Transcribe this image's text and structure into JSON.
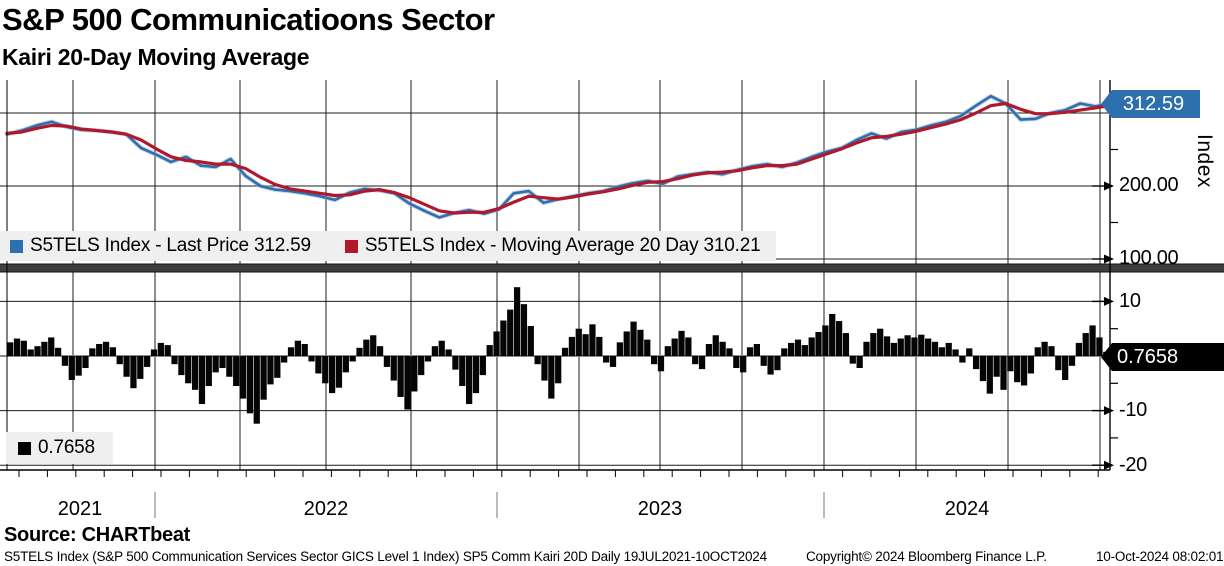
{
  "header": {
    "title": "S&P 500 Communicatioons Sector",
    "subtitle": "Kairi 20-Day Moving Average"
  },
  "colors": {
    "price_line": "#2e6fae",
    "price_halo": "#9db8d8",
    "ma_line": "#b2182b",
    "bars": "#050505",
    "legend_bg": "#efefef",
    "grid": "#1c1c1c",
    "zero_line": "#8a8a8a",
    "panel_separator": "#3f3f3f",
    "price_tag_bg": "#2e6fae",
    "kairi_tag_bg": "#000000"
  },
  "top_panel": {
    "legend": [
      {
        "swatch_color": "#2e6fae",
        "label": "S5TELS Index - Last Price 312.59"
      },
      {
        "swatch_color": "#b2182b",
        "label": "S5TELS Index - Moving Average 20 Day 310.21"
      }
    ],
    "axis": {
      "unit_label": "Index",
      "ticks": [
        "200.00",
        "100.00"
      ],
      "price_tag": "312.59"
    }
  },
  "bottom_panel": {
    "legend": [
      {
        "swatch_color": "#000000",
        "label": "0.7658"
      }
    ],
    "axis": {
      "ticks": [
        "10",
        "-10",
        "-20"
      ],
      "value_tag": "0.7658"
    }
  },
  "x_axis": {
    "years": [
      "2021",
      "2022",
      "2023",
      "2024"
    ]
  },
  "footer": {
    "source": "Source:  CHARTbeat",
    "disclaimer": "S5TELS Index (S&P 500 Communication Services Sector GICS Level 1 Index) SP5 Comm Kairi 20D  Daily 19JUL2021-10OCT2024",
    "copyright": "Copyright© 2024 Bloomberg Finance L.P.",
    "timestamp": "10-Oct-2024 08:02:01"
  },
  "chart_data": [
    {
      "type": "line",
      "title": "S5TELS Index - Last Price vs Moving Average 20 Day",
      "x_range": [
        "19JUL2021",
        "10OCT2024"
      ],
      "x_year_labels": [
        "2021",
        "2022",
        "2023",
        "2024"
      ],
      "ylabel": "Index",
      "ylim": [
        93,
        345
      ],
      "gridlines_y": [
        300,
        200,
        100
      ],
      "grid": true,
      "legend_position": "bottom-left",
      "series": [
        {
          "name": "S5TELS Index - Last Price",
          "color": "#2e6fae",
          "last_value": 312.59,
          "values": [
            271,
            276,
            283,
            288,
            281,
            277,
            276,
            274,
            271,
            252,
            243,
            233,
            240,
            228,
            226,
            237,
            214,
            200,
            195,
            193,
            190,
            186,
            181,
            191,
            196,
            194,
            190,
            176,
            166,
            157,
            163,
            167,
            162,
            168,
            190,
            193,
            177,
            182,
            186,
            190,
            193,
            199,
            204,
            207,
            203,
            213,
            216,
            219,
            216,
            222,
            227,
            230,
            226,
            232,
            240,
            247,
            252,
            263,
            272,
            265,
            274,
            277,
            283,
            288,
            296,
            310,
            323,
            313,
            291,
            292,
            300,
            304,
            313,
            309,
            312.59
          ]
        },
        {
          "name": "S5TELS Index - Moving Average 20 Day",
          "color": "#b2182b",
          "last_value": 310.21,
          "values": [
            272,
            274,
            279,
            283,
            282,
            278,
            276,
            274,
            271,
            263,
            251,
            240,
            235,
            233,
            230,
            230,
            224,
            212,
            202,
            196,
            193,
            190,
            187,
            188,
            193,
            195,
            191,
            184,
            175,
            166,
            163,
            164,
            164,
            169,
            178,
            186,
            184,
            182,
            185,
            189,
            192,
            196,
            201,
            205,
            206,
            210,
            215,
            218,
            219,
            221,
            225,
            228,
            228,
            230,
            237,
            244,
            251,
            259,
            266,
            268,
            271,
            275,
            280,
            285,
            291,
            300,
            310,
            313,
            305,
            299,
            299,
            301,
            304,
            307,
            310.21
          ]
        }
      ]
    },
    {
      "type": "bar",
      "title": "Kairi 20-Day",
      "x_range": [
        "19JUL2021",
        "10OCT2024"
      ],
      "ylim": [
        -22,
        15.5
      ],
      "gridlines_y": [
        10,
        -10,
        -20
      ],
      "grid": true,
      "last_value": 0.7658,
      "bar_color": "#050505",
      "values": [
        2.5,
        3.2,
        2.8,
        1.2,
        1.8,
        2.6,
        3.4,
        1.5,
        -1.8,
        -4.4,
        -3.6,
        -2.2,
        1.4,
        2.2,
        2.6,
        1.6,
        -1.5,
        -3.8,
        -5.9,
        -4.2,
        -2.0,
        1.2,
        2.4,
        2.0,
        -1.5,
        -3.5,
        -5.0,
        -6.2,
        -8.8,
        -5.5,
        -3.0,
        -2.2,
        -3.8,
        -5.5,
        -7.8,
        -10.5,
        -12.4,
        -8.0,
        -5.2,
        -4.0,
        -1.2,
        1.6,
        2.8,
        2.2,
        -1.0,
        -3.2,
        -5.0,
        -6.8,
        -5.8,
        -3.0,
        -1.0,
        1.5,
        3.0,
        3.8,
        1.8,
        -2.0,
        -4.5,
        -7.5,
        -9.8,
        -6.5,
        -3.5,
        -1.0,
        1.8,
        2.8,
        1.2,
        -2.5,
        -5.5,
        -8.8,
        -6.8,
        -3.5,
        2.0,
        4.5,
        6.5,
        8.5,
        12.6,
        9.5,
        5.5,
        -1.5,
        -4.5,
        -7.8,
        -5.0,
        1.5,
        3.5,
        5.0,
        4.0,
        5.8,
        3.5,
        -1.2,
        -2.0,
        2.5,
        4.5,
        6.3,
        4.8,
        3.0,
        -1.5,
        -2.8,
        1.8,
        3.2,
        4.6,
        3.4,
        -1.5,
        -2.4,
        2.2,
        3.8,
        2.6,
        1.4,
        -2.2,
        -3.0,
        1.6,
        2.2,
        -1.8,
        -3.4,
        -2.6,
        1.4,
        2.4,
        3.0,
        2.0,
        3.4,
        4.4,
        5.6,
        7.7,
        6.4,
        4.2,
        -1.4,
        -2.2,
        2.6,
        4.2,
        5.0,
        3.6,
        2.4,
        3.2,
        3.8,
        3.4,
        3.9,
        3.2,
        2.6,
        1.6,
        2.4,
        1.2,
        -1.2,
        1.4,
        -2.4,
        -4.6,
        -6.9,
        -3.8,
        -6.2,
        -2.8,
        -4.8,
        -5.4,
        -3.2,
        1.6,
        2.6,
        1.8,
        -2.6,
        -4.4,
        -1.8,
        2.4,
        4.2,
        5.6,
        3.4,
        0.77
      ]
    }
  ]
}
